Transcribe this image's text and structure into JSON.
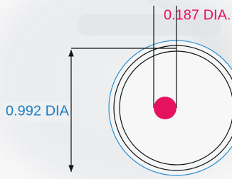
{
  "small_diameter": {
    "label": "0.187 DIA."
  },
  "large_diameter": {
    "label": "0.992 DIA."
  }
}
